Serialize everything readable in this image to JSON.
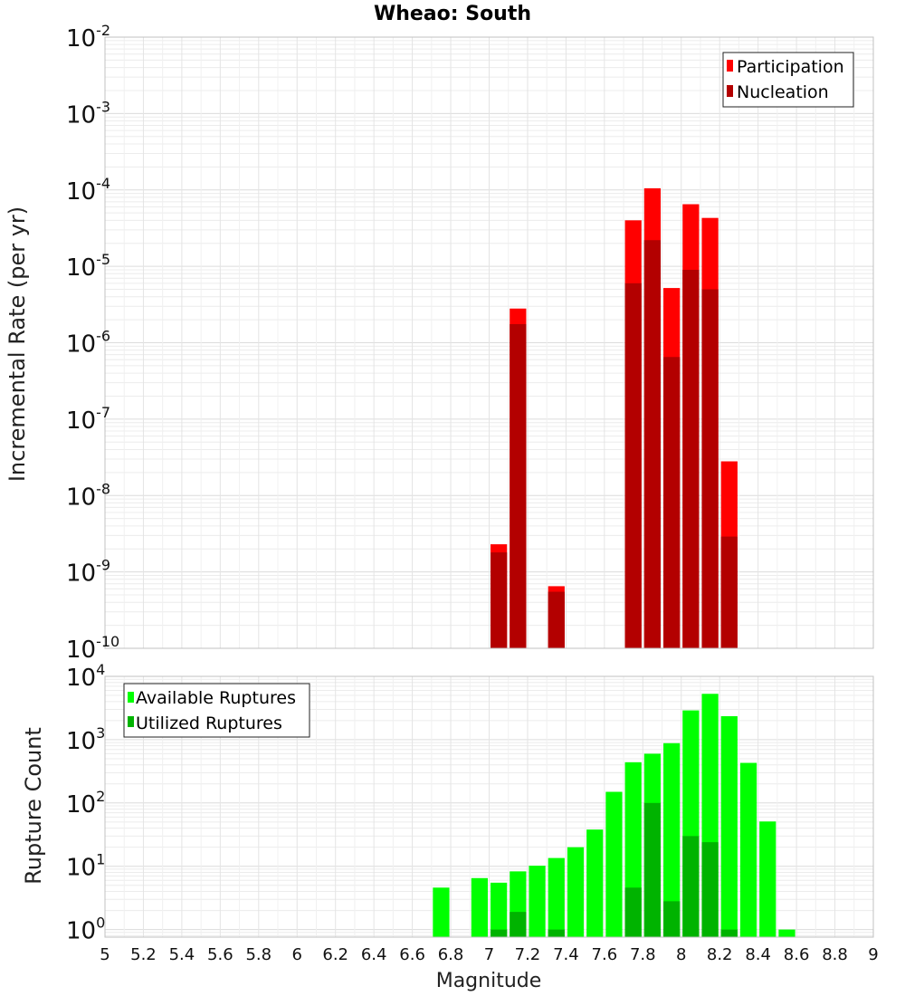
{
  "chart_data": [
    {
      "type": "bar",
      "title": "Wheao: South",
      "ylabel": "Incremental Rate (per yr)",
      "xlabel": "",
      "yscale": "log",
      "ylim_exp": [
        -10,
        -2
      ],
      "xlim": [
        5,
        9
      ],
      "bin_width": 0.1,
      "legend_position": "top-right",
      "y_tick_labels": [
        {
          "base": "10",
          "exp": "-2"
        },
        {
          "base": "10",
          "exp": "-3"
        },
        {
          "base": "10",
          "exp": "-4"
        },
        {
          "base": "10",
          "exp": "-5"
        },
        {
          "base": "10",
          "exp": "-6"
        },
        {
          "base": "10",
          "exp": "-7"
        },
        {
          "base": "10",
          "exp": "-8"
        },
        {
          "base": "10",
          "exp": "-9"
        },
        {
          "base": "10",
          "exp": "-10"
        }
      ],
      "series": [
        {
          "name": "Participation",
          "color": "#ff0000",
          "x": [
            7.05,
            7.15,
            7.35,
            7.75,
            7.85,
            7.95,
            8.05,
            8.15,
            8.25
          ],
          "values": [
            2.3e-09,
            2.8e-06,
            6.5e-10,
            4e-05,
            0.000105,
            5.2e-06,
            6.5e-05,
            4.3e-05,
            2.8e-08
          ]
        },
        {
          "name": "Nucleation",
          "color": "#b30000",
          "x": [
            7.05,
            7.15,
            7.35,
            7.75,
            7.85,
            7.95,
            8.05,
            8.15,
            8.25
          ],
          "values": [
            1.8e-09,
            1.75e-06,
            5.5e-10,
            6e-06,
            2.2e-05,
            6.5e-07,
            9e-06,
            5e-06,
            2.9e-09
          ]
        }
      ]
    },
    {
      "type": "bar",
      "title": "",
      "ylabel": "Rupture Count",
      "xlabel": "Magnitude",
      "yscale": "log",
      "ylim_exp": [
        -0.12,
        4
      ],
      "xlim": [
        5,
        9
      ],
      "bin_width": 0.1,
      "legend_position": "top-left",
      "x_tick_labels": [
        "5",
        "5.2",
        "5.4",
        "5.6",
        "5.8",
        "6",
        "6.2",
        "6.4",
        "6.6",
        "6.8",
        "7",
        "7.2",
        "7.4",
        "7.6",
        "7.8",
        "8",
        "8.2",
        "8.4",
        "8.6",
        "8.8",
        "9"
      ],
      "y_tick_labels": [
        {
          "base": "10",
          "exp": "4"
        },
        {
          "base": "10",
          "exp": "3"
        },
        {
          "base": "10",
          "exp": "2"
        },
        {
          "base": "10",
          "exp": "1"
        },
        {
          "base": "10",
          "exp": "0"
        }
      ],
      "series": [
        {
          "name": "Available Ruptures",
          "color": "#00ff00",
          "x": [
            6.75,
            6.95,
            7.05,
            7.15,
            7.25,
            7.35,
            7.45,
            7.55,
            7.65,
            7.75,
            7.85,
            7.95,
            8.05,
            8.15,
            8.25,
            8.35,
            8.45,
            8.55
          ],
          "values": [
            4.6,
            6.5,
            5.5,
            8.3,
            10.2,
            13.5,
            20,
            38,
            150,
            440,
            600,
            880,
            2900,
            5300,
            2350,
            430,
            51,
            1
          ]
        },
        {
          "name": "Utilized Ruptures",
          "color": "#00b300",
          "x": [
            7.05,
            7.15,
            7.35,
            7.75,
            7.85,
            7.95,
            8.05,
            8.15,
            8.25
          ],
          "values": [
            1,
            1.9,
            1,
            4.6,
            100,
            2.8,
            30,
            24,
            1
          ]
        }
      ]
    }
  ]
}
